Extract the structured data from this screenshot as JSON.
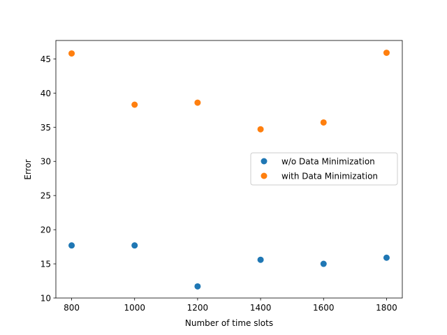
{
  "chart_data": {
    "type": "scatter",
    "title": "",
    "xlabel": "Number of time slots",
    "ylabel": "Error",
    "xlim": [
      750,
      1850
    ],
    "ylim": [
      10,
      47.7
    ],
    "xticks": [
      800,
      1000,
      1200,
      1400,
      1600,
      1800
    ],
    "yticks": [
      10,
      15,
      20,
      25,
      30,
      35,
      40,
      45
    ],
    "grid": false,
    "legend_position": "center-right",
    "series": [
      {
        "name": "w/o Data Minimization",
        "color": "#1f77b4",
        "x": [
          800,
          1000,
          1200,
          1400,
          1600,
          1800
        ],
        "y": [
          17.7,
          17.7,
          11.7,
          15.6,
          15.0,
          15.9
        ]
      },
      {
        "name": "with Data Minimization",
        "color": "#ff7f0e",
        "x": [
          800,
          1000,
          1200,
          1400,
          1600,
          1800
        ],
        "y": [
          45.8,
          38.3,
          38.6,
          34.7,
          35.7,
          45.9
        ]
      }
    ]
  }
}
